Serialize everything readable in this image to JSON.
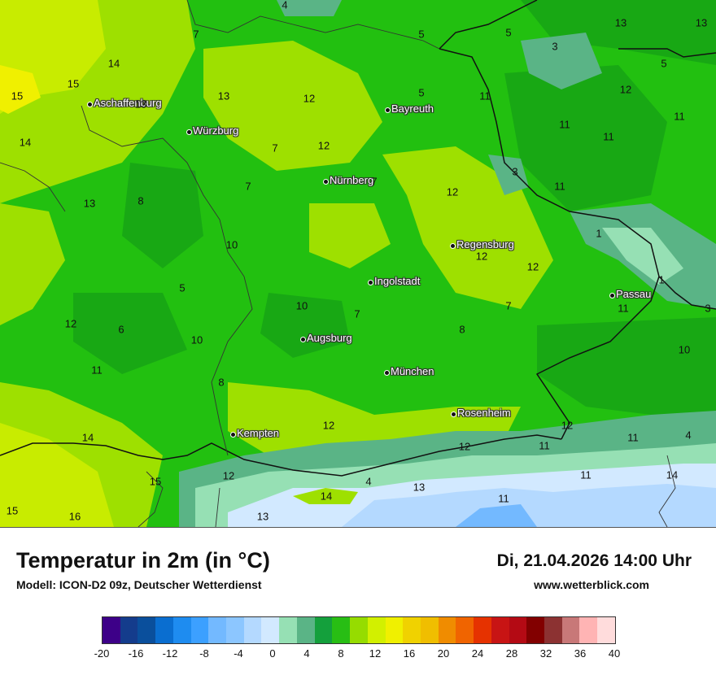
{
  "title": "Temperatur in 2m (in °C)",
  "subtitle": "Modell: ICON-D2 09z, Deutscher Wetterdienst",
  "datetime": "Di, 21.04.2026 14:00 Uhr",
  "website": "www.wetterblick.com",
  "colors": {
    "warm_green": "#9ee000",
    "mid_green": "#22c010",
    "dark_green": "#18a814",
    "yellow_green": "#c8ec00",
    "alp_light": "#e0f0ff",
    "alp_blue": "#a8d0ff"
  },
  "cities": [
    {
      "name": "Aschaffenburg"
    },
    {
      "name": "Würzburg"
    },
    {
      "name": "Bayreuth"
    },
    {
      "name": "Nürnberg"
    },
    {
      "name": "Regensburg"
    },
    {
      "name": "Ingolstadt"
    },
    {
      "name": "Passau"
    },
    {
      "name": "Augsburg"
    },
    {
      "name": "München"
    },
    {
      "name": "Rosenheim"
    },
    {
      "name": "Kempten"
    }
  ],
  "temperature_labels": [
    "4",
    "7",
    "5",
    "13",
    "13",
    "3",
    "5",
    "5",
    "14",
    "15",
    "15",
    "13",
    "13",
    "12",
    "5",
    "11",
    "12",
    "11",
    "11",
    "11",
    "14",
    "7",
    "12",
    "7",
    "3",
    "13",
    "8",
    "7",
    "12",
    "11",
    "1",
    "10",
    "12",
    "12",
    "5",
    "1",
    "10",
    "7",
    "7",
    "11",
    "3",
    "12",
    "6",
    "10",
    "8",
    "10",
    "11",
    "8",
    "12",
    "12",
    "11",
    "4",
    "14",
    "12",
    "11",
    "14",
    "12",
    "15",
    "4",
    "13",
    "11",
    "11",
    "15",
    "16",
    "14",
    "13"
  ],
  "legend": {
    "colors": [
      "#3d0088",
      "#143c8c",
      "#0a4f9c",
      "#0a6ed0",
      "#1e8cf0",
      "#3ca0ff",
      "#73b9ff",
      "#8cc6ff",
      "#b4d9ff",
      "#d2e9ff",
      "#96e0b4",
      "#5ab486",
      "#14a03c",
      "#28be14",
      "#96dc00",
      "#d2f000",
      "#f0f000",
      "#f0d200",
      "#f0be00",
      "#f08c00",
      "#f06400",
      "#e63200",
      "#c81414",
      "#b40a14",
      "#820000",
      "#8c3232",
      "#c87878",
      "#ffb4b4",
      "#ffdcdc"
    ],
    "ticks": [
      "-20",
      "-16",
      "-12",
      "-8",
      "-4",
      "0",
      "4",
      "8",
      "12",
      "16",
      "20",
      "24",
      "28",
      "32",
      "36",
      "40"
    ]
  }
}
